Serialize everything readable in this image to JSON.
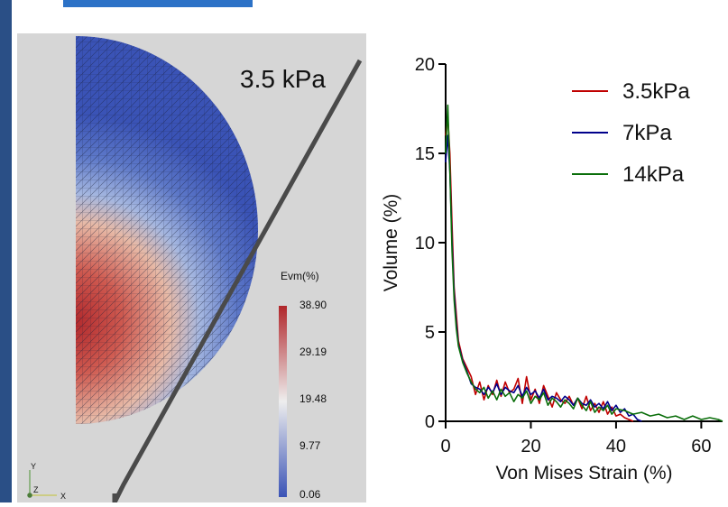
{
  "pressure_label": "3.5 kPa",
  "colorbar": {
    "title": "Evm(%)",
    "ticks": [
      "38.90",
      "29.19",
      "19.48",
      "9.77",
      "0.06"
    ]
  },
  "axes_triad": {
    "y": "Y",
    "x": "X",
    "z": "Z"
  },
  "colors": {
    "accent_bar": "#2a4f86",
    "header": "#2c72c7",
    "panel": "#d6d6d6",
    "mesh_low": "#3a53b6",
    "mesh_high": "#b0262a"
  },
  "chart_data": {
    "type": "line",
    "xlabel": "Von Mises Strain (%)",
    "ylabel": "Volume (%)",
    "xlim": [
      0,
      65
    ],
    "ylim": [
      0,
      20
    ],
    "xticks": [
      0,
      20,
      40,
      60
    ],
    "yticks": [
      0,
      5,
      10,
      15,
      20
    ],
    "legend_position": "top-right",
    "series": [
      {
        "name": "3.5kPa",
        "color": "#c00000",
        "x": [
          0,
          0.5,
          1,
          1.5,
          2,
          2.5,
          3,
          4,
          5,
          6,
          7,
          8,
          9,
          10,
          11,
          12,
          13,
          14,
          15,
          16,
          17,
          18,
          19,
          20,
          21,
          22,
          23,
          24,
          25,
          26,
          27,
          28,
          29,
          30,
          31,
          32,
          33,
          34,
          35,
          36,
          37,
          38,
          39,
          40,
          41,
          42,
          44
        ],
        "y": [
          16,
          17,
          15,
          11,
          7.5,
          6,
          4.5,
          3.5,
          3.0,
          2.5,
          1.5,
          2.2,
          1.2,
          2.0,
          1.5,
          2.3,
          1.4,
          2.2,
          1.6,
          1.8,
          2.4,
          1.0,
          2.5,
          1.2,
          1.8,
          1.0,
          2.0,
          1.4,
          0.8,
          1.6,
          1.2,
          1.0,
          1.4,
          0.9,
          1.3,
          0.7,
          1.4,
          0.6,
          1.0,
          0.5,
          1.1,
          0.4,
          0.8,
          0.3,
          0.4,
          0.2,
          0
        ]
      },
      {
        "name": "7kPa",
        "color": "#00008b",
        "x": [
          0,
          0.5,
          1,
          1.5,
          2,
          2.5,
          3,
          4,
          5,
          6,
          7,
          8,
          9,
          10,
          11,
          12,
          13,
          14,
          15,
          16,
          17,
          18,
          19,
          20,
          21,
          22,
          23,
          24,
          25,
          26,
          27,
          28,
          29,
          30,
          31,
          32,
          33,
          34,
          35,
          36,
          37,
          38,
          39,
          40,
          41,
          42,
          43,
          44,
          45,
          46
        ],
        "y": [
          14.5,
          16,
          14,
          10,
          7.2,
          5.5,
          4.3,
          3.4,
          2.8,
          2.1,
          1.9,
          1.8,
          1.5,
          1.9,
          1.6,
          2.1,
          1.5,
          1.9,
          1.7,
          1.6,
          2.0,
          1.4,
          1.9,
          1.5,
          1.7,
          1.3,
          1.8,
          1.2,
          1.4,
          1.3,
          1.1,
          1.4,
          1.2,
          0.9,
          1.3,
          1.0,
          0.9,
          1.2,
          0.8,
          1.0,
          0.7,
          1.1,
          0.6,
          0.9,
          0.5,
          0.7,
          0.3,
          0.4,
          0.1,
          0
        ]
      },
      {
        "name": "14kPa",
        "color": "#0a6e0a",
        "x": [
          0,
          0.5,
          1,
          1.5,
          2,
          2.5,
          3,
          4,
          5,
          6,
          7,
          8,
          9,
          10,
          11,
          12,
          13,
          14,
          15,
          16,
          17,
          18,
          19,
          20,
          21,
          22,
          23,
          24,
          25,
          26,
          27,
          28,
          29,
          30,
          31,
          32,
          33,
          34,
          35,
          36,
          37,
          38,
          39,
          40,
          42,
          44,
          46,
          48,
          50,
          52,
          54,
          56,
          58,
          60,
          62,
          64,
          65
        ],
        "y": [
          15,
          17.7,
          14,
          9.5,
          6.8,
          5.2,
          4.2,
          3.3,
          2.7,
          2.2,
          1.8,
          1.6,
          1.9,
          1.3,
          1.7,
          1.2,
          1.8,
          1.4,
          1.6,
          1.1,
          1.5,
          1.3,
          1.7,
          1.0,
          1.4,
          1.2,
          1.6,
          0.9,
          1.3,
          1.1,
          0.8,
          1.2,
          1.0,
          0.7,
          1.3,
          0.9,
          0.6,
          1.1,
          0.5,
          0.8,
          0.6,
          0.9,
          0.4,
          0.7,
          0.6,
          0.4,
          0.5,
          0.3,
          0.4,
          0.2,
          0.3,
          0.1,
          0.3,
          0.1,
          0.2,
          0.1,
          0
        ]
      }
    ]
  }
}
